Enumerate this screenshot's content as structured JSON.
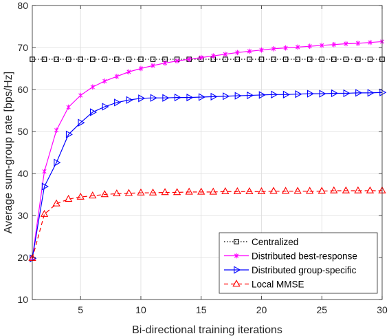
{
  "chart_data": {
    "type": "line",
    "xlabel": "Bi-directional training iterations",
    "ylabel": "Average sum-group rate [bps/Hz]",
    "xlim": [
      1,
      30
    ],
    "ylim": [
      10,
      80
    ],
    "xticks": [
      5,
      10,
      15,
      20,
      25,
      30
    ],
    "yticks": [
      10,
      20,
      30,
      40,
      50,
      60,
      70,
      80
    ],
    "grid": true,
    "legend_position": "bottom-right",
    "x": [
      1,
      2,
      3,
      4,
      5,
      6,
      7,
      8,
      9,
      10,
      11,
      12,
      13,
      14,
      15,
      16,
      17,
      18,
      19,
      20,
      21,
      22,
      23,
      24,
      25,
      26,
      27,
      28,
      29,
      30
    ],
    "series": [
      {
        "name": "Centralized",
        "color": "#000000",
        "line_style": "dotted",
        "marker": "square",
        "values": [
          67.2,
          67.2,
          67.2,
          67.2,
          67.2,
          67.2,
          67.2,
          67.2,
          67.2,
          67.2,
          67.2,
          67.2,
          67.2,
          67.2,
          67.2,
          67.2,
          67.2,
          67.2,
          67.2,
          67.2,
          67.2,
          67.2,
          67.2,
          67.2,
          67.2,
          67.2,
          67.2,
          67.2,
          67.2,
          67.2
        ]
      },
      {
        "name": "Distributed best-response",
        "color": "#ff00ff",
        "line_style": "solid",
        "marker": "asterisk",
        "values": [
          19.8,
          40.5,
          50.3,
          55.8,
          58.6,
          60.6,
          62.0,
          63.1,
          64.2,
          65.0,
          65.7,
          66.3,
          66.8,
          67.2,
          67.6,
          68.0,
          68.4,
          68.8,
          69.1,
          69.4,
          69.7,
          69.9,
          70.1,
          70.3,
          70.5,
          70.7,
          70.9,
          71.0,
          71.2,
          71.4
        ]
      },
      {
        "name": "Distributed group-specific",
        "color": "#0000ff",
        "line_style": "solid",
        "marker": "triangle-right",
        "values": [
          19.8,
          36.9,
          42.6,
          49.3,
          52.1,
          54.6,
          55.9,
          56.9,
          57.5,
          57.9,
          58.0,
          58.0,
          58.1,
          58.1,
          58.2,
          58.3,
          58.4,
          58.5,
          58.6,
          58.7,
          58.8,
          58.8,
          58.9,
          59.0,
          59.0,
          59.1,
          59.1,
          59.2,
          59.2,
          59.3
        ]
      },
      {
        "name": "Local MMSE",
        "color": "#ff0000",
        "line_style": "dashed",
        "marker": "triangle-up",
        "values": [
          19.8,
          30.3,
          32.8,
          33.9,
          34.4,
          34.7,
          35.0,
          35.2,
          35.3,
          35.4,
          35.4,
          35.5,
          35.5,
          35.6,
          35.6,
          35.6,
          35.7,
          35.7,
          35.7,
          35.7,
          35.8,
          35.8,
          35.8,
          35.8,
          35.8,
          35.9,
          35.9,
          35.9,
          35.9,
          35.9
        ]
      }
    ]
  }
}
